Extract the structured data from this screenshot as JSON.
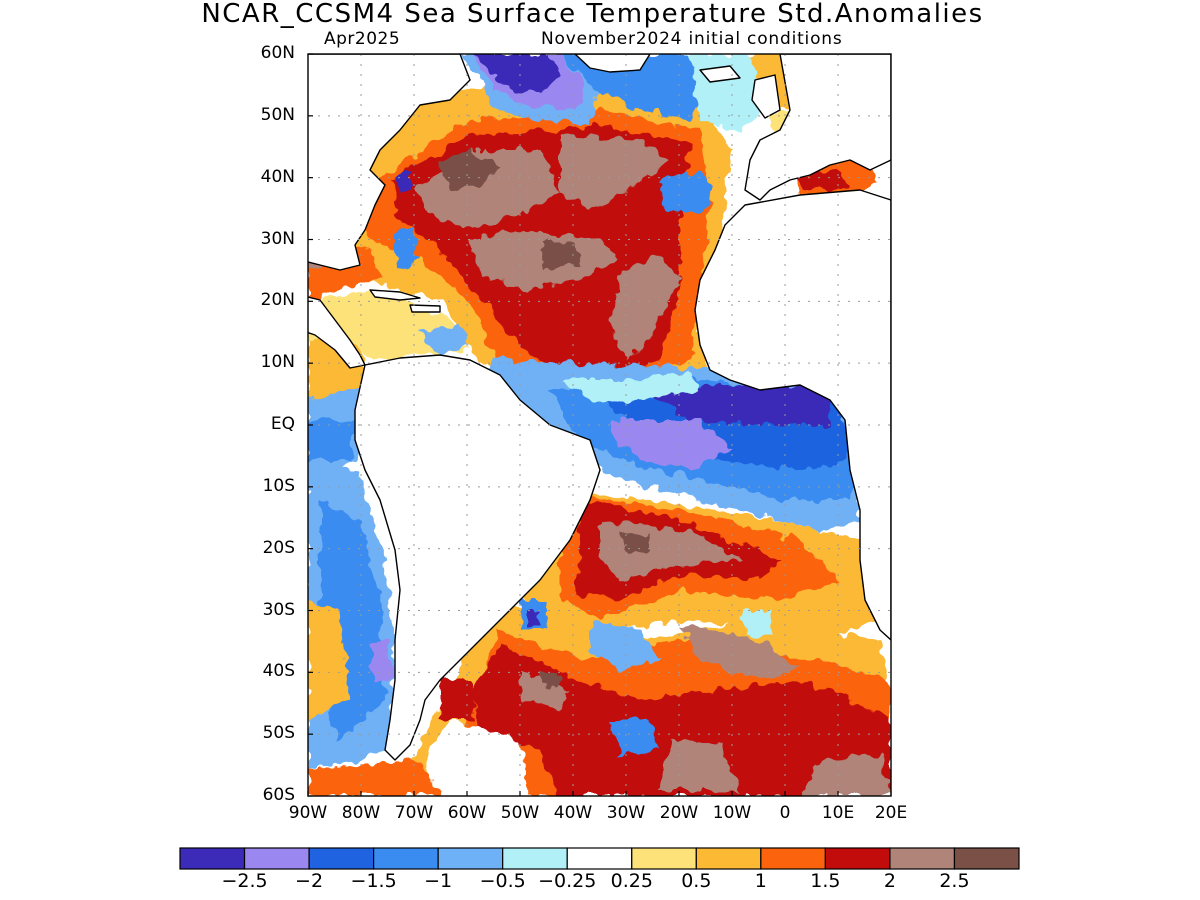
{
  "title": "NCAR_CCSM4 Sea Surface Temperature Std.Anomalies",
  "subtitle_left": "Apr2025",
  "subtitle_right": "November2024 initial conditions",
  "map": {
    "region": "Atlantic Ocean",
    "lat_range": [
      -60,
      60
    ],
    "lon_range": [
      -90,
      20
    ],
    "y_tick_labels": [
      "60N",
      "50N",
      "40N",
      "30N",
      "20N",
      "10N",
      "EQ",
      "10S",
      "20S",
      "30S",
      "40S",
      "50S",
      "60S"
    ],
    "x_tick_labels": [
      "90W",
      "80W",
      "70W",
      "60W",
      "50W",
      "40W",
      "30W",
      "20W",
      "10W",
      "0",
      "10E",
      "20E"
    ],
    "grid": "dotted",
    "coastlines": true,
    "ocean_anomaly_areas": [
      {
        "area": "North Atlantic subtropical gyre",
        "value": 2.0
      },
      {
        "area": "Western North Atlantic 35N-45N",
        "value": 2.5
      },
      {
        "area": "Tropical North Atlantic",
        "value": 1.5
      },
      {
        "area": "Labrador Sea",
        "value": -2.5
      },
      {
        "area": "Gulf of Guinea / equatorial Atlantic",
        "value": -2.5
      },
      {
        "area": "Equatorial Atlantic 0-10S",
        "value": -1.5
      },
      {
        "area": "Subtropical South Atlantic 20S-30S",
        "value": 2.5
      },
      {
        "area": "Southern Ocean 40S-55S",
        "value": 2.0
      },
      {
        "area": "Eastern tropical Pacific off South America",
        "value": -1.0
      },
      {
        "area": "Mediterranean Sea",
        "value": 1.5
      },
      {
        "area": "Caribbean Sea",
        "value": 0.5
      }
    ],
    "colors": {
      "land": "#ffffff",
      "coast": "#000000",
      "grid": "#9a9a9a"
    }
  },
  "colorbar": {
    "colors": [
      "#3b2bb8",
      "#9b87f0",
      "#1f63e0",
      "#3a8cf0",
      "#6fb1f6",
      "#b2f0f8",
      "#ffffff",
      "#fde27a",
      "#fcb934",
      "#fb640c",
      "#c20b0b",
      "#b08479",
      "#7a5047"
    ],
    "labels": [
      "-2.5",
      "-2",
      "-1.5",
      "-1",
      "-0.5",
      "-0.25",
      "0.25",
      "0.5",
      "1",
      "1.5",
      "2",
      "2.5"
    ]
  }
}
